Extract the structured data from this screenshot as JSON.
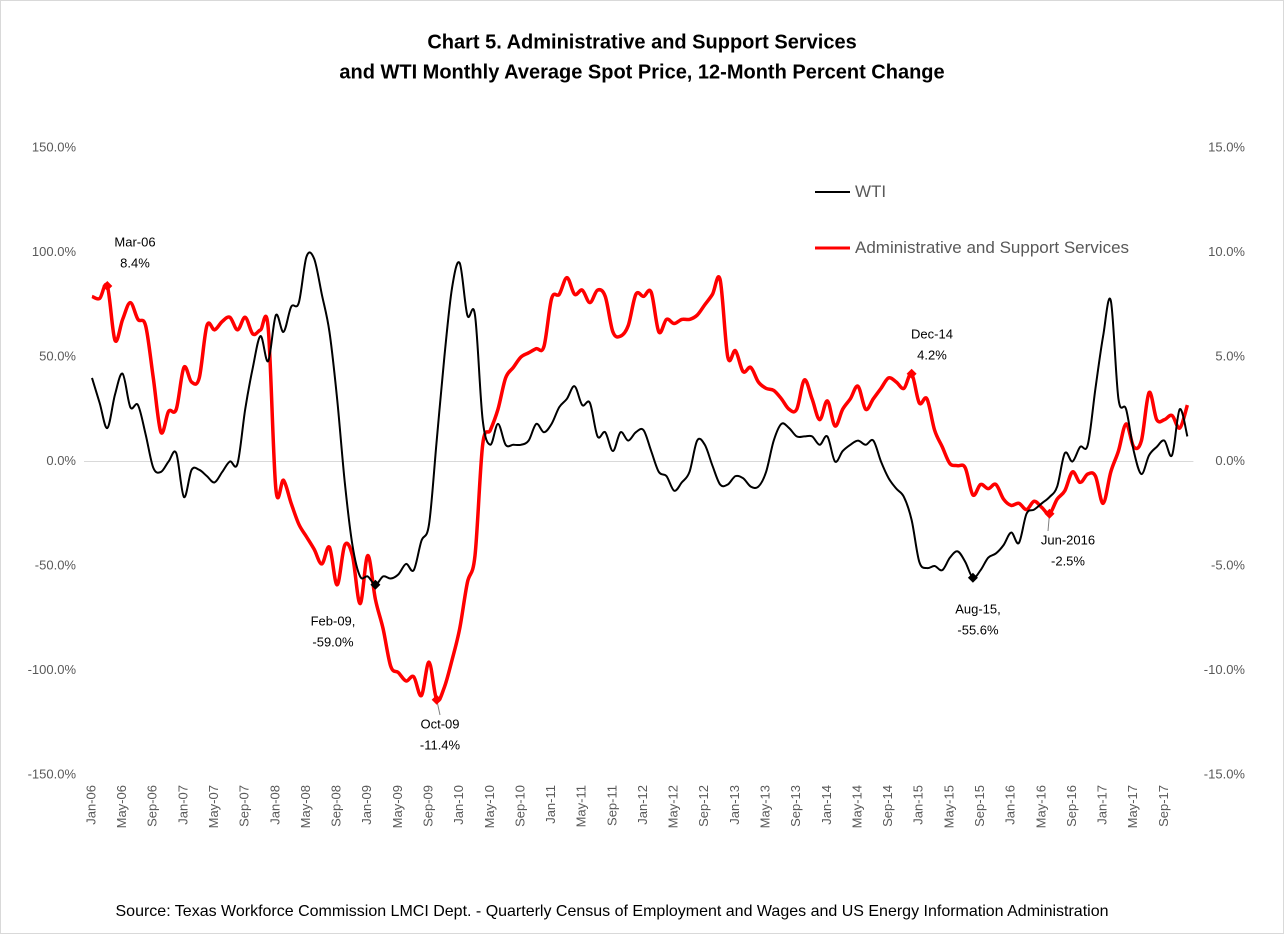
{
  "chart_data": {
    "type": "line",
    "title": [
      "Chart 5. Administrative and Support Services",
      "and WTI Monthly Average Spot Price, 12-Month Percent Change"
    ],
    "source": "Source: Texas Workforce Commission LMCI Dept. - Quarterly Census of Employment and Wages and US Energy Information Administration",
    "categories": [
      "Jan-06",
      null,
      null,
      null,
      "May-06",
      null,
      null,
      null,
      "Sep-06",
      null,
      null,
      null,
      "Jan-07",
      null,
      null,
      null,
      "May-07",
      null,
      null,
      null,
      "Sep-07",
      null,
      null,
      null,
      "Jan-08",
      null,
      null,
      null,
      "May-08",
      null,
      null,
      null,
      "Sep-08",
      null,
      null,
      null,
      "Jan-09",
      null,
      null,
      null,
      "May-09",
      null,
      null,
      null,
      "Sep-09",
      null,
      null,
      null,
      "Jan-10",
      null,
      null,
      null,
      "May-10",
      null,
      null,
      null,
      "Sep-10",
      null,
      null,
      null,
      "Jan-11",
      null,
      null,
      null,
      "May-11",
      null,
      null,
      null,
      "Sep-11",
      null,
      null,
      null,
      "Jan-12",
      null,
      null,
      null,
      "May-12",
      null,
      null,
      null,
      "Sep-12",
      null,
      null,
      null,
      "Jan-13",
      null,
      null,
      null,
      "May-13",
      null,
      null,
      null,
      "Sep-13",
      null,
      null,
      null,
      "Jan-14",
      null,
      null,
      null,
      "May-14",
      null,
      null,
      null,
      "Sep-14",
      null,
      null,
      null,
      "Jan-15",
      null,
      null,
      null,
      "May-15",
      null,
      null,
      null,
      "Sep-15",
      null,
      null,
      null,
      "Jan-16",
      null,
      null,
      null,
      "May-16",
      null,
      null,
      null,
      "Sep-16",
      null,
      null,
      null,
      "Jan-17",
      null,
      null,
      null,
      "May-17",
      null,
      null,
      null,
      "Sep-17",
      null,
      null,
      null
    ],
    "series": [
      {
        "name": "WTI",
        "color": "#000000",
        "axis": "y",
        "values": [
          40,
          28,
          16,
          32,
          42,
          26,
          27,
          13,
          -3,
          -5,
          0,
          4,
          -17,
          -4,
          -4,
          -7,
          -10,
          -5,
          0,
          -1,
          25,
          45,
          60,
          48,
          70,
          62,
          74,
          76,
          98,
          97,
          80,
          62,
          30,
          -10,
          -40,
          -55,
          -55,
          -59.0,
          -55,
          -56,
          -54,
          -49,
          -52,
          -38,
          -30,
          10,
          50,
          83,
          95,
          70,
          70,
          20,
          8,
          18,
          8,
          8,
          8,
          10,
          18,
          14,
          18,
          26,
          30,
          36,
          27,
          28,
          12,
          14,
          5,
          14,
          10,
          14,
          15,
          5,
          -5,
          -7,
          -14,
          -10,
          -5,
          10,
          8,
          -2,
          -11,
          -11,
          -7,
          -8,
          -12,
          -12,
          -5,
          10,
          18,
          16,
          12,
          12,
          12,
          8,
          12,
          0,
          5,
          8,
          10,
          8,
          10,
          0,
          -8,
          -13,
          -17,
          -28,
          -48,
          -51,
          -50,
          -52,
          -46,
          -43,
          -48,
          -55.6,
          -52,
          -46,
          -44,
          -40,
          -34,
          -39,
          -25,
          -23,
          -20,
          -17,
          -12,
          4,
          0,
          7,
          8,
          35,
          60,
          77,
          30,
          25,
          5,
          -6,
          3,
          7,
          10,
          3,
          25,
          12
        ]
      },
      {
        "name": "Administrative and Support Services",
        "color": "#ff0000",
        "axis": "y2",
        "values": [
          7.9,
          7.8,
          8.4,
          5.8,
          6.8,
          7.6,
          6.8,
          6.5,
          4.0,
          1.4,
          2.4,
          2.5,
          4.5,
          3.8,
          4.0,
          6.5,
          6.3,
          6.7,
          6.9,
          6.3,
          6.9,
          6.1,
          6.3,
          6.4,
          -1.3,
          -0.9,
          -2.0,
          -3.0,
          -3.6,
          -4.2,
          -4.9,
          -4.1,
          -5.9,
          -4.0,
          -4.5,
          -6.8,
          -4.5,
          -6.6,
          -8.0,
          -9.8,
          -10.1,
          -10.5,
          -10.3,
          -11.2,
          -9.6,
          -11.4,
          -10.8,
          -9.5,
          -8.0,
          -5.8,
          -4.5,
          0.8,
          1.5,
          2.5,
          4.0,
          4.5,
          5.0,
          5.2,
          5.4,
          5.5,
          7.8,
          8.0,
          8.8,
          8.0,
          8.2,
          7.6,
          8.2,
          7.9,
          6.2,
          6.0,
          6.5,
          8.0,
          7.9,
          8.1,
          6.2,
          6.8,
          6.6,
          6.8,
          6.8,
          7.0,
          7.5,
          8.0,
          8.7,
          5.0,
          5.3,
          4.3,
          4.5,
          3.8,
          3.5,
          3.4,
          3.0,
          2.5,
          2.5,
          3.9,
          3.0,
          2.0,
          2.9,
          1.7,
          2.5,
          3.0,
          3.6,
          2.5,
          3.0,
          3.5,
          4.0,
          3.8,
          3.5,
          4.2,
          2.8,
          3.0,
          1.5,
          0.7,
          -0.1,
          -0.2,
          -0.3,
          -1.6,
          -1.1,
          -1.3,
          -1.1,
          -1.8,
          -2.1,
          -2.0,
          -2.3,
          -1.9,
          -2.2,
          -2.5,
          -1.8,
          -1.4,
          -0.5,
          -1.0,
          -0.6,
          -0.7,
          -2.0,
          -0.5,
          0.5,
          1.8,
          0.7,
          1.0,
          3.3,
          2.0,
          2.0,
          2.2,
          1.6,
          2.7
        ]
      }
    ],
    "ylim": [
      -150,
      150
    ],
    "yticks": [
      {
        "value": -150,
        "label": "-150.0%"
      },
      {
        "value": -100,
        "label": "-100.0%"
      },
      {
        "value": -50,
        "label": "-50.0%"
      },
      {
        "value": 0,
        "label": "0.0%"
      },
      {
        "value": 50,
        "label": "50.0%"
      },
      {
        "value": 100,
        "label": "100.0%"
      },
      {
        "value": 150,
        "label": "150.0%"
      }
    ],
    "y2lim": [
      -15,
      15
    ],
    "y2ticks": [
      {
        "value": -15,
        "label": "-15.0%"
      },
      {
        "value": -10,
        "label": "-10.0%"
      },
      {
        "value": -5,
        "label": "-5.0%"
      },
      {
        "value": 0,
        "label": "0.0%"
      },
      {
        "value": 5,
        "label": "5.0%"
      },
      {
        "value": 10,
        "label": "10.0%"
      },
      {
        "value": 15,
        "label": "15.0%"
      }
    ],
    "annotations": [
      {
        "series": 1,
        "index": 2,
        "lines": [
          "Mar-06",
          "8.4%"
        ]
      },
      {
        "series": 0,
        "index": 37,
        "lines": [
          "Feb-09,",
          "-59.0%"
        ]
      },
      {
        "series": 1,
        "index": 45,
        "lines": [
          "Oct-09",
          "-11.4%"
        ]
      },
      {
        "series": 1,
        "index": 107,
        "lines": [
          "Dec-14",
          "4.2%"
        ]
      },
      {
        "series": 0,
        "index": 115,
        "lines": [
          "Aug-15,",
          "-55.6%"
        ]
      },
      {
        "series": 1,
        "index": 125,
        "lines": [
          "Jun-2016",
          "-2.5%"
        ]
      }
    ]
  }
}
